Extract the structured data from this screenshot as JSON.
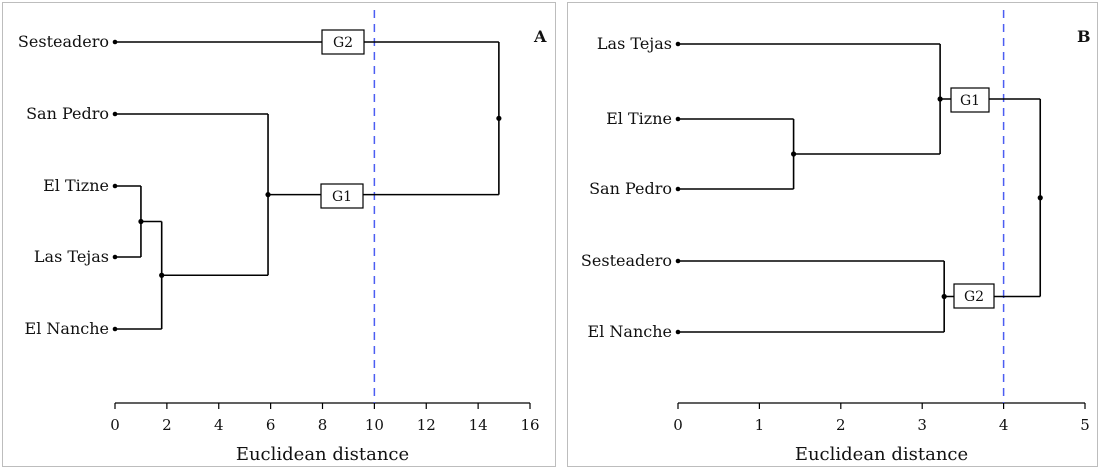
{
  "chart_data": [
    {
      "type": "dendrogram",
      "panel": "A",
      "xlabel": "Euclidean distance",
      "xlim": [
        0,
        16
      ],
      "xticks": [
        0,
        2,
        4,
        6,
        8,
        10,
        12,
        14,
        16
      ],
      "cut_line": 10,
      "leaves": [
        "Sesteadero",
        "San Pedro",
        "El Tizne",
        "Las Tejas",
        "El Nanche"
      ],
      "merges": [
        {
          "id": "m1",
          "children": [
            "El Tizne",
            "Las Tejas"
          ],
          "height": 1.0
        },
        {
          "id": "m2",
          "children": [
            "m1",
            "El Nanche"
          ],
          "height": 1.8
        },
        {
          "id": "m3",
          "children": [
            "San Pedro",
            "m2"
          ],
          "height": 5.9
        },
        {
          "id": "root",
          "children": [
            "Sesteadero",
            "m3"
          ],
          "height": 14.8
        }
      ],
      "groups": [
        {
          "label": "G2",
          "member": "Sesteadero"
        },
        {
          "label": "G1",
          "member": "m3"
        }
      ]
    },
    {
      "type": "dendrogram",
      "panel": "B",
      "xlabel": "Euclidean distance",
      "xlim": [
        0,
        5
      ],
      "xticks": [
        0,
        1,
        2,
        3,
        4,
        5
      ],
      "cut_line": 4,
      "leaves": [
        "Las Tejas",
        "El Tizne",
        "San Pedro",
        "Sesteadero",
        "El Nanche"
      ],
      "merges": [
        {
          "id": "m1",
          "children": [
            "El Tizne",
            "San Pedro"
          ],
          "height": 1.42
        },
        {
          "id": "m2",
          "children": [
            "Las Tejas",
            "m1"
          ],
          "height": 3.22
        },
        {
          "id": "m3",
          "children": [
            "Sesteadero",
            "El Nanche"
          ],
          "height": 3.27
        },
        {
          "id": "root",
          "children": [
            "m2",
            "m3"
          ],
          "height": 4.45
        }
      ],
      "groups": [
        {
          "label": "G1",
          "member": "m2"
        },
        {
          "label": "G2",
          "member": "m3"
        }
      ]
    }
  ]
}
